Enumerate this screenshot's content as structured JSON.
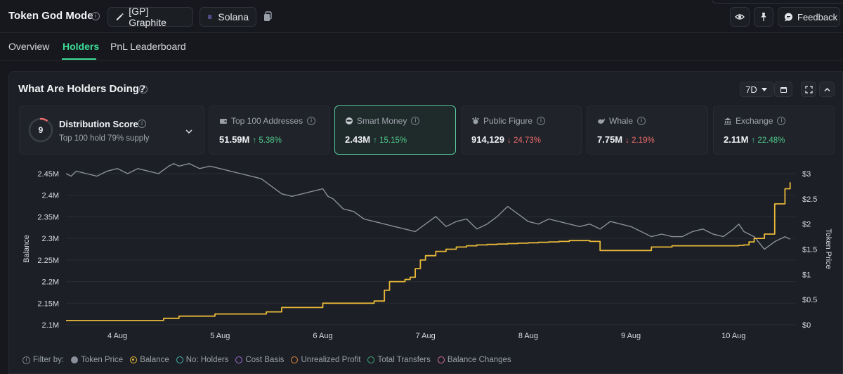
{
  "header": {
    "title": "Token God Mode",
    "token_label": "[GP] Graphite",
    "chain_label": "Solana",
    "feedback_label": "Feedback"
  },
  "tabs": [
    {
      "label": "Overview",
      "active": false
    },
    {
      "label": "Holders",
      "active": true
    },
    {
      "label": "PnL Leaderboard",
      "active": false
    }
  ],
  "panel": {
    "title": "What Are Holders Doing?",
    "range": "7D"
  },
  "distribution": {
    "score": "9",
    "label": "Distribution Score",
    "subtitle": "Top 100 hold 79% supply",
    "score_fraction": 0.09
  },
  "cards": [
    {
      "label": "Top 100 Addresses",
      "value": "51.59M",
      "change": "↑ 5.38%",
      "direction": "up",
      "icon": "wallet-icon",
      "selected": false
    },
    {
      "label": "Smart Money",
      "value": "2.43M",
      "change": "↑ 15.15%",
      "direction": "up",
      "icon": "smart-money-icon",
      "selected": true
    },
    {
      "label": "Public Figure",
      "value": "914,129",
      "change": "↓ 24.73%",
      "direction": "down",
      "icon": "public-figure-icon",
      "selected": false
    },
    {
      "label": "Whale",
      "value": "7.75M",
      "change": "↓ 2.19%",
      "direction": "down",
      "icon": "whale-icon",
      "selected": false
    },
    {
      "label": "Exchange",
      "value": "2.11M",
      "change": "↑ 22.48%",
      "direction": "up",
      "icon": "exchange-icon",
      "selected": false
    }
  ],
  "colors": {
    "accent": "#3ddc97",
    "balance_line": "#e8b83a",
    "price_line": "#8a8f99",
    "up": "#4fc78a",
    "down": "#ec6a6a"
  },
  "legend": {
    "filter_label": "Filter by:",
    "items": [
      {
        "label": "Token Price",
        "color": "#8a8f99",
        "style": "filled"
      },
      {
        "label": "Balance",
        "color": "#e8b83a",
        "style": "ring"
      },
      {
        "label": "No: Holders",
        "color": "#3fb6a8",
        "style": "outline"
      },
      {
        "label": "Cost Basis",
        "color": "#9b6fd6",
        "style": "outline"
      },
      {
        "label": "Unrealized Profit",
        "color": "#e08a3a",
        "style": "outline"
      },
      {
        "label": "Total Transfers",
        "color": "#3fa77a",
        "style": "outline"
      },
      {
        "label": "Balance Changes",
        "color": "#d66fa8",
        "style": "outline"
      }
    ]
  },
  "chart_data": {
    "type": "line",
    "ylabel": "Balance",
    "y2label": "Token Price",
    "x_ticks": [
      "4 Aug",
      "5 Aug",
      "6 Aug",
      "7 Aug",
      "8 Aug",
      "9 Aug",
      "10 Aug"
    ],
    "x_range": [
      3.5,
      10.6
    ],
    "ylim": [
      2.1,
      2.45
    ],
    "y_unit": "M",
    "y_ticks": [
      "2.45M",
      "2.4M",
      "2.35M",
      "2.3M",
      "2.25M",
      "2.2M",
      "2.15M",
      "2.1M"
    ],
    "y2lim": [
      0,
      3
    ],
    "y2_ticks": [
      "$3",
      "$2.5",
      "$2",
      "$1.5",
      "$1",
      "$0.5",
      "$0"
    ],
    "grid": true,
    "series": [
      {
        "name": "Token Price",
        "axis": "right",
        "x": [
          3.5,
          3.55,
          3.6,
          3.7,
          3.8,
          3.9,
          4.0,
          4.1,
          4.2,
          4.3,
          4.4,
          4.5,
          4.55,
          4.6,
          4.7,
          4.8,
          4.9,
          5.0,
          5.1,
          5.2,
          5.3,
          5.4,
          5.5,
          5.6,
          5.7,
          5.8,
          5.9,
          6.0,
          6.05,
          6.1,
          6.2,
          6.3,
          6.4,
          6.5,
          6.6,
          6.7,
          6.8,
          6.9,
          7.0,
          7.1,
          7.2,
          7.3,
          7.4,
          7.5,
          7.6,
          7.7,
          7.8,
          7.9,
          8.0,
          8.1,
          8.2,
          8.3,
          8.4,
          8.5,
          8.6,
          8.7,
          8.8,
          8.9,
          9.0,
          9.1,
          9.2,
          9.3,
          9.4,
          9.5,
          9.6,
          9.7,
          9.8,
          9.9,
          10.0,
          10.05,
          10.1,
          10.2,
          10.3,
          10.4,
          10.5,
          10.55
        ],
        "y": [
          3.0,
          2.95,
          3.05,
          3.0,
          2.95,
          3.05,
          3.1,
          3.0,
          3.1,
          3.05,
          3.0,
          3.15,
          3.2,
          3.15,
          3.2,
          3.1,
          3.15,
          3.1,
          3.05,
          3.0,
          2.95,
          2.9,
          2.75,
          2.6,
          2.55,
          2.6,
          2.65,
          2.7,
          2.55,
          2.5,
          2.3,
          2.25,
          2.1,
          2.05,
          2.0,
          1.95,
          1.9,
          1.85,
          2.0,
          2.15,
          1.95,
          2.05,
          2.1,
          1.9,
          2.0,
          2.15,
          2.35,
          2.2,
          2.05,
          2.0,
          2.1,
          2.05,
          2.0,
          1.95,
          2.0,
          1.9,
          2.05,
          2.0,
          1.95,
          1.85,
          1.75,
          1.8,
          1.75,
          1.75,
          1.85,
          1.9,
          1.8,
          1.75,
          1.9,
          2.0,
          1.85,
          1.75,
          1.5,
          1.65,
          1.75,
          1.7
        ]
      },
      {
        "name": "Balance",
        "axis": "left",
        "x": [
          3.5,
          4.3,
          4.45,
          4.6,
          4.95,
          5.3,
          5.45,
          5.6,
          6.0,
          6.3,
          6.5,
          6.6,
          6.65,
          6.7,
          6.75,
          6.8,
          6.85,
          6.9,
          6.95,
          7.0,
          7.1,
          7.2,
          7.3,
          7.4,
          7.5,
          7.6,
          7.7,
          7.8,
          7.9,
          8.0,
          8.1,
          8.2,
          8.3,
          8.4,
          8.5,
          8.6,
          8.7,
          8.8,
          9.0,
          9.2,
          9.4,
          9.6,
          9.8,
          10.0,
          10.05,
          10.1,
          10.15,
          10.2,
          10.3,
          10.4,
          10.5,
          10.55
        ],
        "y": [
          2.11,
          2.11,
          2.115,
          2.12,
          2.125,
          2.125,
          2.13,
          2.14,
          2.15,
          2.15,
          2.155,
          2.18,
          2.2,
          2.2,
          2.2,
          2.205,
          2.21,
          2.23,
          2.25,
          2.26,
          2.27,
          2.275,
          2.28,
          2.283,
          2.285,
          2.286,
          2.287,
          2.288,
          2.289,
          2.29,
          2.291,
          2.292,
          2.293,
          2.295,
          2.295,
          2.293,
          2.272,
          2.272,
          2.272,
          2.28,
          2.283,
          2.283,
          2.283,
          2.283,
          2.284,
          2.285,
          2.292,
          2.3,
          2.31,
          2.38,
          2.415,
          2.43
        ]
      }
    ]
  }
}
